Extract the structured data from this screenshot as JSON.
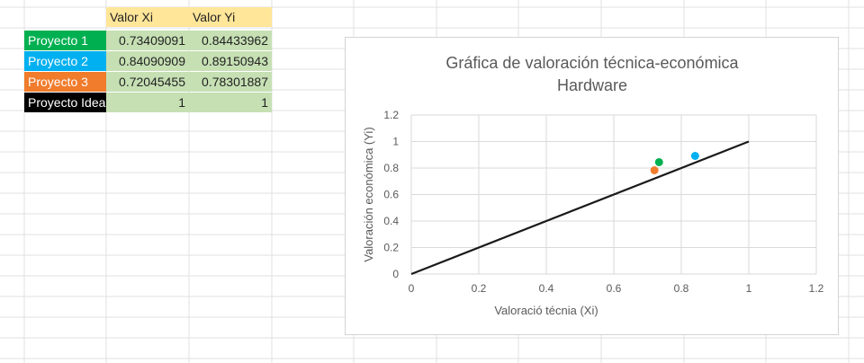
{
  "table": {
    "headers": [
      "Valor Xi",
      "Valor Yi"
    ],
    "rows": [
      {
        "name": "Proyecto 1",
        "color": "#00b050",
        "text_color": "#ffffff",
        "xi": "0.73409091",
        "yi": "0.84433962"
      },
      {
        "name": "Proyecto 2",
        "color": "#00b0f0",
        "text_color": "#ffffff",
        "xi": "0.84090909",
        "yi": "0.89150943"
      },
      {
        "name": "Proyecto 3",
        "color": "#f07c2c",
        "text_color": "#ffffff",
        "xi": "0.72045455",
        "yi": "0.78301887"
      },
      {
        "name": "Proyecto Idea",
        "color": "#000000",
        "text_color": "#ffffff",
        "xi": "1",
        "yi": "1"
      }
    ]
  },
  "chart_data": {
    "type": "scatter",
    "title_line1": "Gráfica de valoración técnica-económica",
    "title_line2": "Hardware",
    "xlabel": "Valoració técnia (Xi)",
    "ylabel": "Valoración económica (Yi)",
    "xlim": [
      0,
      1.2
    ],
    "ylim": [
      0,
      1.2
    ],
    "xticks": [
      "0",
      "0.2",
      "0.4",
      "0.6",
      "0.8",
      "1",
      "1.2"
    ],
    "yticks": [
      "0",
      "0.2",
      "0.4",
      "0.6",
      "0.8",
      "1",
      "1.2"
    ],
    "grid": true,
    "line": {
      "x": [
        0,
        1
      ],
      "y": [
        0,
        1
      ],
      "color": "#1a1a1a"
    },
    "points": [
      {
        "x": 0.73409091,
        "y": 0.84433962,
        "color": "#00b050"
      },
      {
        "x": 0.84090909,
        "y": 0.89150943,
        "color": "#00b0f0"
      },
      {
        "x": 0.72045455,
        "y": 0.78301887,
        "color": "#f07c2c"
      }
    ]
  }
}
